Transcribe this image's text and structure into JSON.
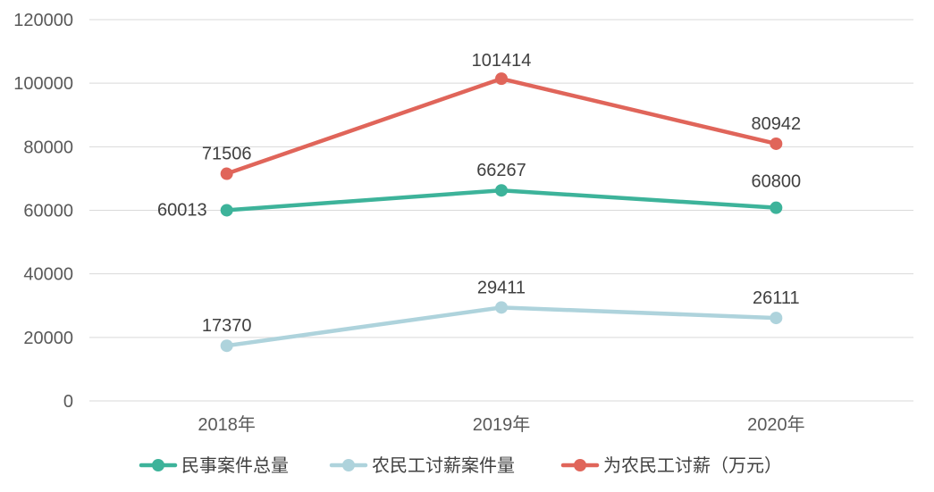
{
  "chart_data": {
    "type": "line",
    "categories": [
      "2018年",
      "2019年",
      "2020年"
    ],
    "ylim": [
      0,
      120000
    ],
    "yticks": [
      0,
      20000,
      40000,
      60000,
      80000,
      100000,
      120000
    ],
    "grid": true,
    "legend_position": "bottom",
    "series": [
      {
        "name": "民事案件总量",
        "values": [
          60013,
          66267,
          60800
        ],
        "color": "#3DB39A"
      },
      {
        "name": "农民工讨薪案件量",
        "values": [
          17370,
          29411,
          26111
        ],
        "color": "#AED3DC"
      },
      {
        "name": "为农民工讨薪（万元）",
        "values": [
          71506,
          101414,
          80942
        ],
        "color": "#E0655A"
      }
    ]
  }
}
